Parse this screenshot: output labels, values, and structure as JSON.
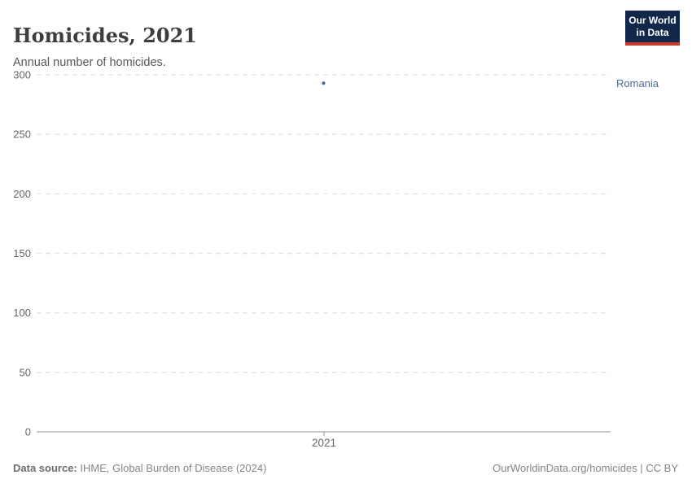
{
  "header": {
    "title": "Homicides, 2021",
    "subtitle": "Annual number of homicides."
  },
  "branding": {
    "logo_line1": "Our World",
    "logo_line2": "in Data",
    "navy": "#12284B",
    "red": "#C5392F"
  },
  "chart_data": {
    "type": "scatter",
    "title": "Homicides, 2021",
    "subtitle": "Annual number of homicides.",
    "x": [
      2021
    ],
    "xticklabels": [
      "2021"
    ],
    "series": [
      {
        "name": "Romania",
        "values": [
          293
        ],
        "color": "#4C6A9C"
      }
    ],
    "xlabel": "",
    "ylabel": "",
    "ylim": [
      0,
      300
    ],
    "yticks": [
      0,
      50,
      100,
      150,
      200,
      250,
      300
    ],
    "grid": "horizontal-dashed",
    "grid_color": "#e5e5e5",
    "axis_color": "#999999",
    "legend_position": "entity-label-right"
  },
  "footer": {
    "source_label": "Data source:",
    "source_value": "IHME, Global Burden of Disease (2024)",
    "rights": "OurWorldinData.org/homicides | CC BY"
  }
}
